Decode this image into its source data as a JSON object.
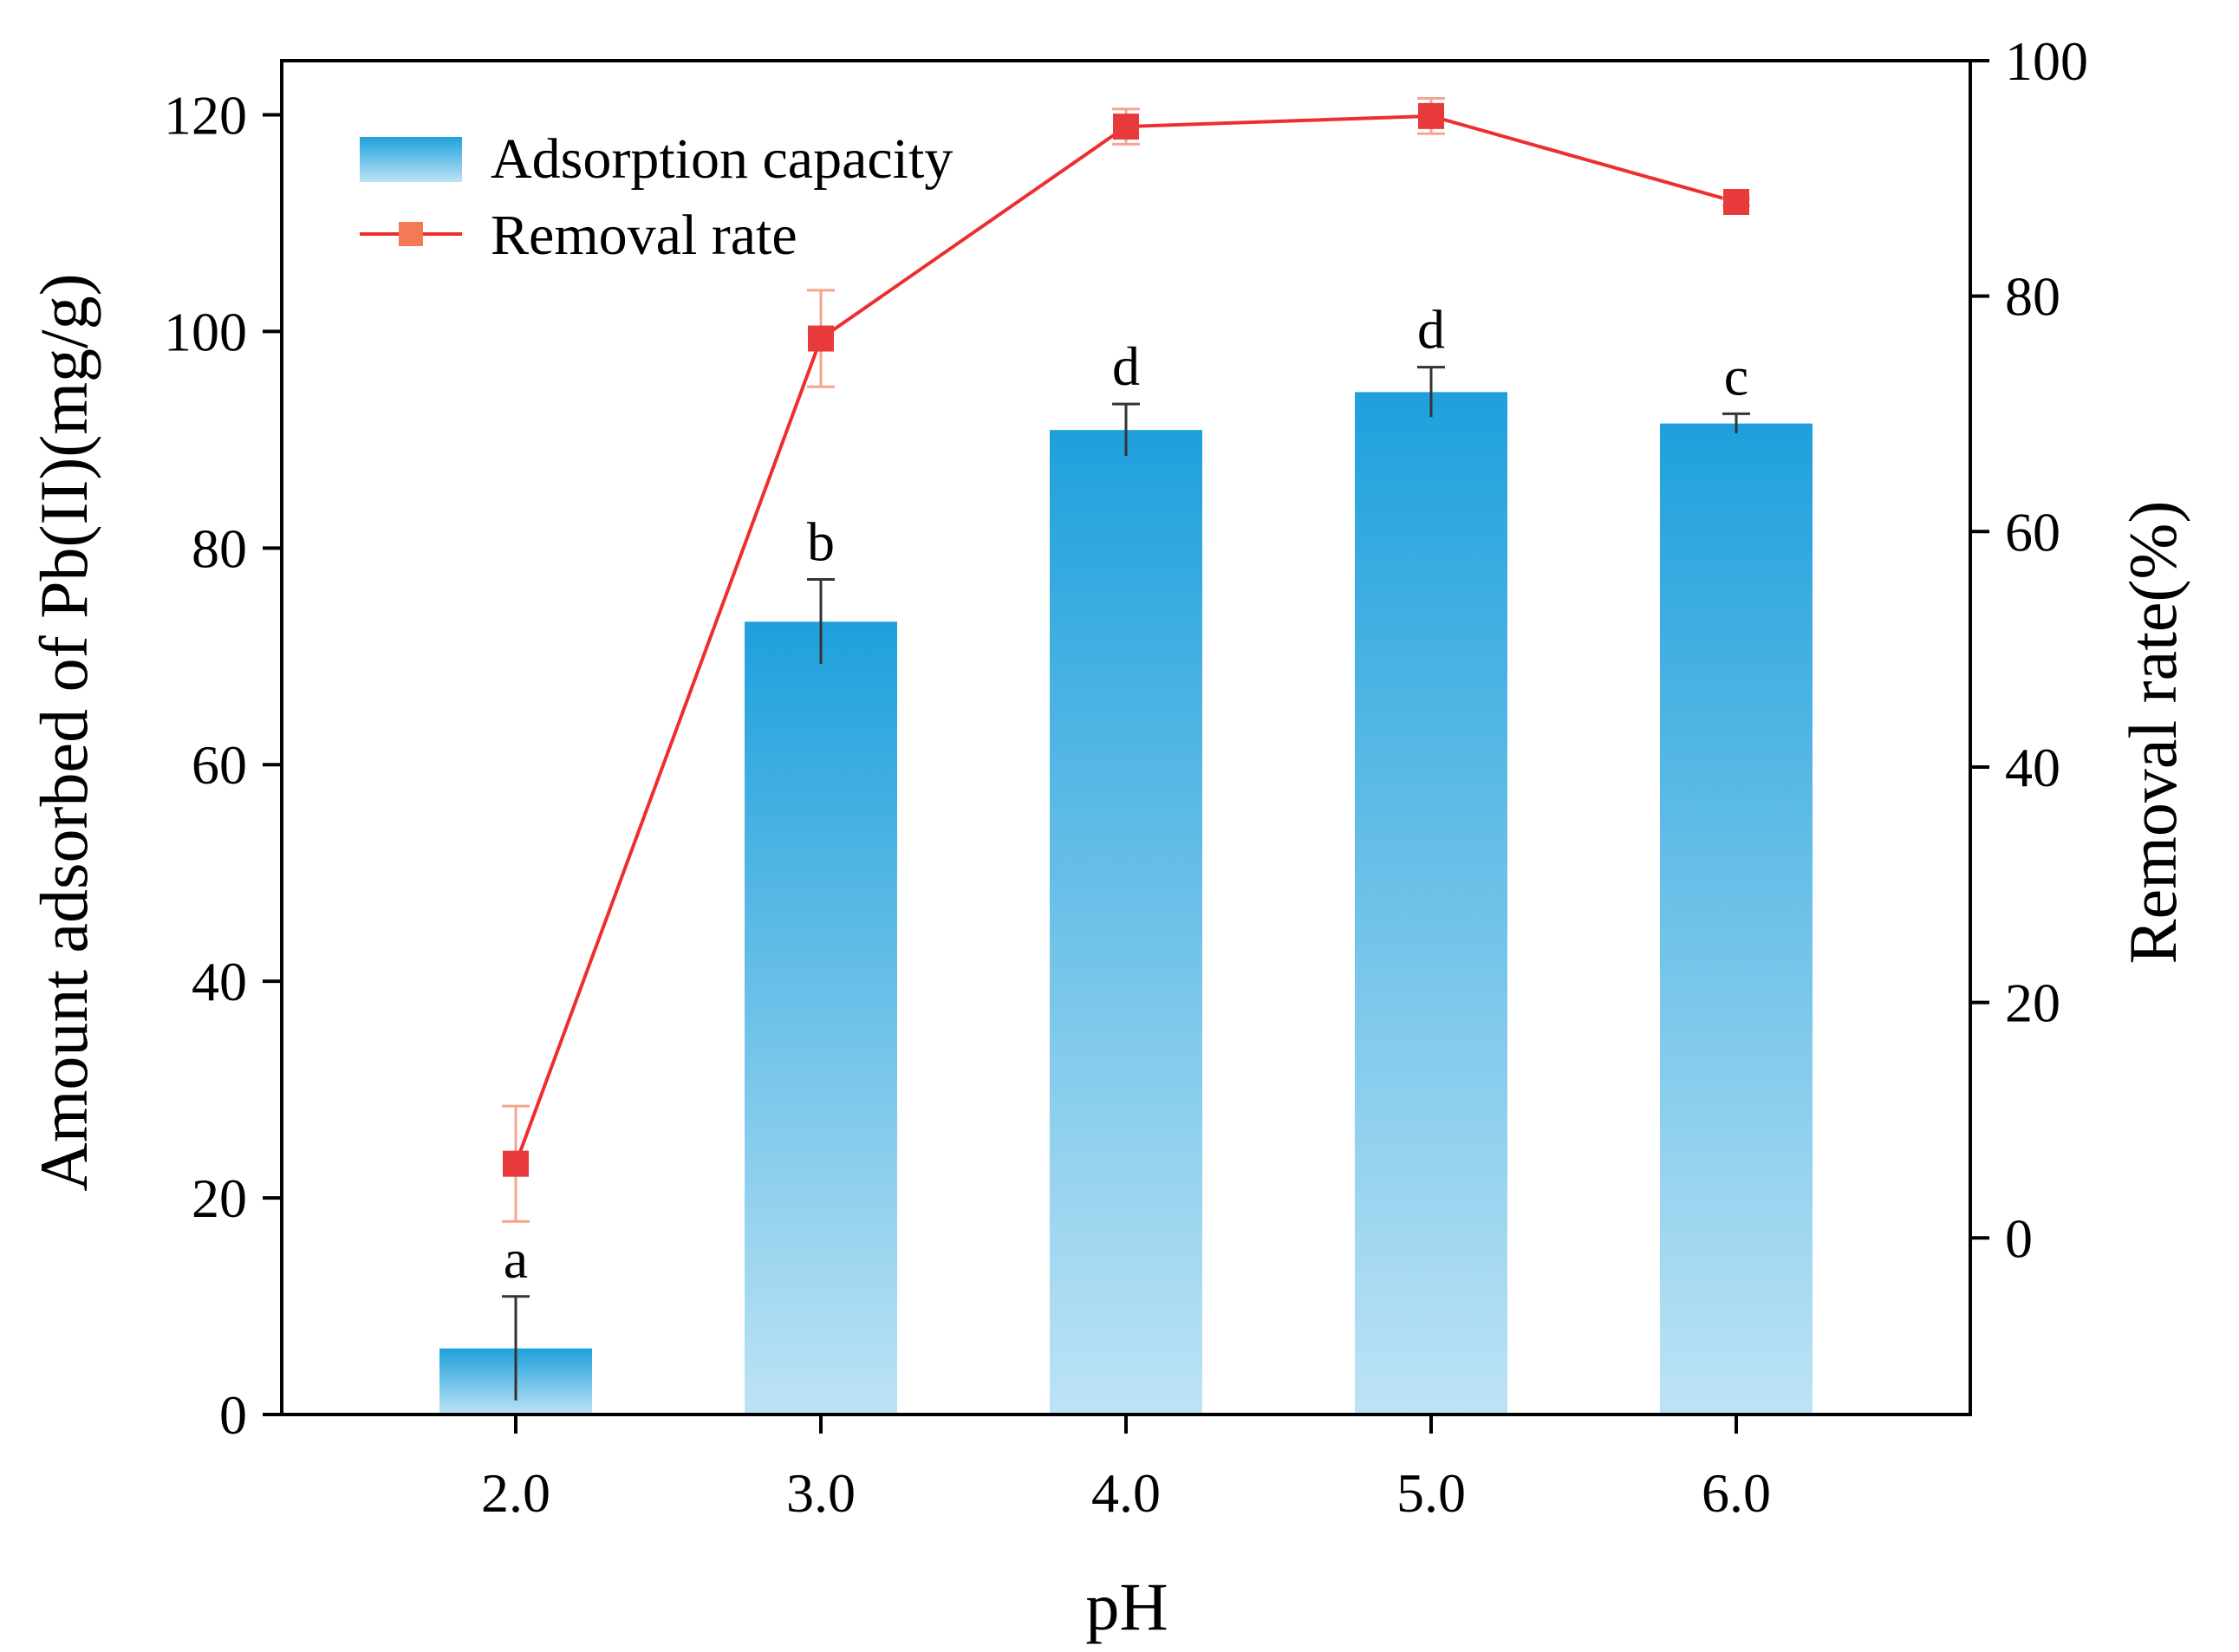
{
  "chart_data": {
    "type": "bar+line",
    "title": "",
    "xlabel": "pH",
    "ylabel_left": "Amount adsorbed of Pb(II)(mg/g)",
    "ylabel_right": "Removal rate(%)",
    "categories": [
      "2.0",
      "3.0",
      "4.0",
      "5.0",
      "6.0"
    ],
    "ylim_left": [
      0,
      125
    ],
    "yticks_left": [
      0,
      20,
      40,
      60,
      80,
      100,
      120
    ],
    "ylim_right": [
      -15,
      100
    ],
    "yticks_right": [
      0,
      20,
      40,
      60,
      80,
      100
    ],
    "series": [
      {
        "name": "Adsorption capacity",
        "kind": "bar",
        "axis": "left",
        "values": [
          6.1,
          73.2,
          90.9,
          94.4,
          91.5
        ],
        "errors": [
          4.8,
          3.9,
          2.4,
          2.3,
          0.9
        ],
        "labels": [
          "a",
          "b",
          "d",
          "d",
          "c"
        ],
        "color_top": "#1ea0dc",
        "color_bottom": "#bde3f5"
      },
      {
        "name": "Removal rate",
        "kind": "line",
        "axis": "right",
        "values": [
          6.3,
          76.4,
          94.4,
          95.3,
          88.0
        ],
        "errors": [
          4.9,
          4.1,
          1.5,
          1.5,
          0.3
        ],
        "color": "#ee2e2e",
        "marker_color": "#e83a3a",
        "error_color": "#f5a58f"
      }
    ],
    "legend": {
      "position": "top-left",
      "entries": [
        "Adsorption capacity",
        "Removal rate"
      ]
    }
  }
}
